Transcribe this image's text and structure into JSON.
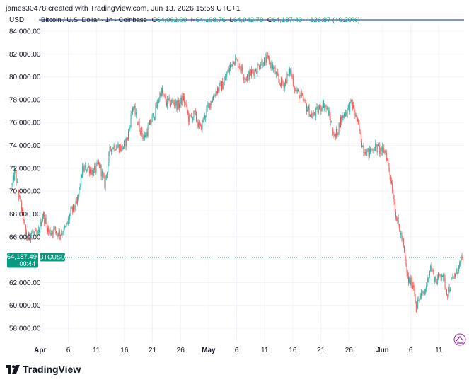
{
  "header": {
    "credit": "james30478 created with TradingView.com, Jun 13, 2026 15:59 UTC+1"
  },
  "brand": {
    "name": "TradingView"
  },
  "colors": {
    "up": "#26a69a",
    "down": "#ef5350",
    "line": "#4a78c8",
    "price_tag": "#089981",
    "grid": "#f0f3fa",
    "axis_text": "#131722"
  },
  "chart_data": {
    "type": "candlestick",
    "symbol_label": "BTCUSD",
    "currency_label": "USD",
    "legend": {
      "name": "Bitcoin / U.S. Dollar · 1h · Coinbase",
      "open_label": "O",
      "open": "64,062.00",
      "high_label": "H",
      "high": "64,198.76",
      "low_label": "L",
      "low": "64,042.79",
      "close_label": "C",
      "close": "64,187.49",
      "change": "+126.87 (+0.20%)"
    },
    "last_price": 64187.49,
    "last_price_label": "64,187.49",
    "countdown": "00:44",
    "y_ticks": [
      "84,000.00",
      "82,000.00",
      "80,000.00",
      "78,000.00",
      "76,000.00",
      "74,000.00",
      "72,000.00",
      "70,000.00",
      "68,000.00",
      "66,000.00",
      "62,000.00",
      "60,000.00",
      "58,000.00"
    ],
    "y_tick_values": [
      84000,
      82000,
      80000,
      78000,
      76000,
      74000,
      72000,
      70000,
      68000,
      66000,
      62000,
      60000,
      58000
    ],
    "ylim": [
      56000,
      84800
    ],
    "x_ticks": [
      "Apr",
      "6",
      "11",
      "16",
      "21",
      "26",
      "May",
      "6",
      "11",
      "16",
      "21",
      "26",
      "Jun",
      "6",
      "11"
    ],
    "x_tick_day_index": [
      3,
      8,
      13,
      18,
      23,
      28,
      33,
      38,
      43,
      48,
      53,
      58,
      64,
      69,
      74
    ],
    "x_range_days": [
      -3.4,
      78.5
    ],
    "price_path": [
      {
        "day": -2.0,
        "price": 70500
      },
      {
        "day": -1.5,
        "price": 71800
      },
      {
        "day": -1.0,
        "price": 70200
      },
      {
        "day": 0.0,
        "price": 67500
      },
      {
        "day": 0.6,
        "price": 65800
      },
      {
        "day": 1.5,
        "price": 66400
      },
      {
        "day": 2.5,
        "price": 66000
      },
      {
        "day": 3.5,
        "price": 68000
      },
      {
        "day": 4.5,
        "price": 66400
      },
      {
        "day": 5.5,
        "price": 66600
      },
      {
        "day": 6.5,
        "price": 66300
      },
      {
        "day": 7.5,
        "price": 66700
      },
      {
        "day": 8.5,
        "price": 68200
      },
      {
        "day": 9.5,
        "price": 68800
      },
      {
        "day": 10.5,
        "price": 71800
      },
      {
        "day": 11.5,
        "price": 72100
      },
      {
        "day": 12.5,
        "price": 71600
      },
      {
        "day": 13.5,
        "price": 72400
      },
      {
        "day": 14.5,
        "price": 70600
      },
      {
        "day": 15.5,
        "price": 73800
      },
      {
        "day": 16.5,
        "price": 74000
      },
      {
        "day": 17.5,
        "price": 73700
      },
      {
        "day": 18.5,
        "price": 74500
      },
      {
        "day": 19.5,
        "price": 77500
      },
      {
        "day": 20.5,
        "price": 75800
      },
      {
        "day": 21.5,
        "price": 74600
      },
      {
        "day": 22.5,
        "price": 75800
      },
      {
        "day": 23.5,
        "price": 77000
      },
      {
        "day": 24.5,
        "price": 78800
      },
      {
        "day": 25.5,
        "price": 77700
      },
      {
        "day": 26.5,
        "price": 77800
      },
      {
        "day": 27.5,
        "price": 77500
      },
      {
        "day": 28.5,
        "price": 78200
      },
      {
        "day": 29.5,
        "price": 76300
      },
      {
        "day": 30.5,
        "price": 76700
      },
      {
        "day": 31.5,
        "price": 75400
      },
      {
        "day": 32.5,
        "price": 76900
      },
      {
        "day": 33.5,
        "price": 78000
      },
      {
        "day": 34.5,
        "price": 78900
      },
      {
        "day": 35.5,
        "price": 79300
      },
      {
        "day": 36.5,
        "price": 80500
      },
      {
        "day": 37.5,
        "price": 81600
      },
      {
        "day": 38.5,
        "price": 81000
      },
      {
        "day": 39.5,
        "price": 79900
      },
      {
        "day": 40.5,
        "price": 80300
      },
      {
        "day": 41.5,
        "price": 80700
      },
      {
        "day": 42.5,
        "price": 81300
      },
      {
        "day": 43.5,
        "price": 81500
      },
      {
        "day": 44.5,
        "price": 80800
      },
      {
        "day": 45.5,
        "price": 79600
      },
      {
        "day": 46.5,
        "price": 79400
      },
      {
        "day": 47.5,
        "price": 80600
      },
      {
        "day": 48.5,
        "price": 78800
      },
      {
        "day": 49.5,
        "price": 78200
      },
      {
        "day": 50.5,
        "price": 77300
      },
      {
        "day": 51.5,
        "price": 76500
      },
      {
        "day": 52.5,
        "price": 77100
      },
      {
        "day": 53.5,
        "price": 77700
      },
      {
        "day": 54.5,
        "price": 76600
      },
      {
        "day": 55.5,
        "price": 74600
      },
      {
        "day": 56.5,
        "price": 76200
      },
      {
        "day": 57.5,
        "price": 77000
      },
      {
        "day": 58.5,
        "price": 77700
      },
      {
        "day": 59.5,
        "price": 76000
      },
      {
        "day": 60.5,
        "price": 73800
      },
      {
        "day": 61.5,
        "price": 73300
      },
      {
        "day": 62.5,
        "price": 73900
      },
      {
        "day": 63.5,
        "price": 73600
      },
      {
        "day": 64.5,
        "price": 73500
      },
      {
        "day": 65.5,
        "price": 71000
      },
      {
        "day": 66.5,
        "price": 67500
      },
      {
        "day": 67.5,
        "price": 65700
      },
      {
        "day": 68.5,
        "price": 62200
      },
      {
        "day": 69.5,
        "price": 61800
      },
      {
        "day": 70.0,
        "price": 59700
      },
      {
        "day": 70.5,
        "price": 60600
      },
      {
        "day": 71.5,
        "price": 61200
      },
      {
        "day": 72.5,
        "price": 63400
      },
      {
        "day": 73.5,
        "price": 62100
      },
      {
        "day": 74.5,
        "price": 62900
      },
      {
        "day": 75.5,
        "price": 61100
      },
      {
        "day": 76.5,
        "price": 62300
      },
      {
        "day": 77.5,
        "price": 63300
      },
      {
        "day": 78.3,
        "price": 64187
      }
    ]
  }
}
